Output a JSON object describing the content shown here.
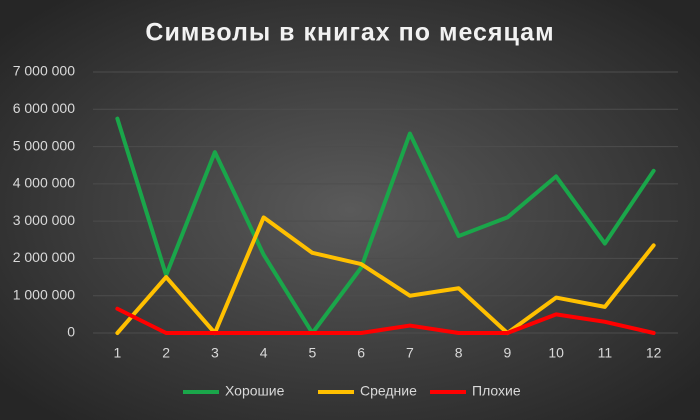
{
  "chart_data": {
    "type": "line",
    "title": "Символы в книгах по месяцам",
    "categories": [
      "1",
      "2",
      "3",
      "4",
      "5",
      "6",
      "7",
      "8",
      "9",
      "10",
      "11",
      "12"
    ],
    "series": [
      {
        "name": "Хорошие",
        "color": "#1aa64a",
        "values": [
          5750000,
          1550000,
          4850000,
          2100000,
          0,
          1750000,
          5350000,
          2600000,
          3100000,
          4200000,
          2400000,
          4350000
        ]
      },
      {
        "name": "Средние",
        "color": "#ffc000",
        "values": [
          0,
          1500000,
          0,
          3100000,
          2150000,
          1850000,
          1000000,
          1200000,
          0,
          950000,
          700000,
          2350000
        ]
      },
      {
        "name": "Плохие",
        "color": "#ff0000",
        "values": [
          650000,
          0,
          0,
          0,
          0,
          0,
          200000,
          0,
          0,
          500000,
          300000,
          0
        ]
      }
    ],
    "ylim": [
      0,
      7000000
    ],
    "yticks": [
      {
        "value": 0,
        "label": "0"
      },
      {
        "value": 1000000,
        "label": "1 000 000"
      },
      {
        "value": 2000000,
        "label": "2 000 000"
      },
      {
        "value": 3000000,
        "label": "3 000 000"
      },
      {
        "value": 4000000,
        "label": "4 000 000"
      },
      {
        "value": 5000000,
        "label": "5 000 000"
      },
      {
        "value": 6000000,
        "label": "6 000 000"
      },
      {
        "value": 7000000,
        "label": "7 000 000"
      }
    ],
    "grid": true,
    "legend": "bottom"
  }
}
